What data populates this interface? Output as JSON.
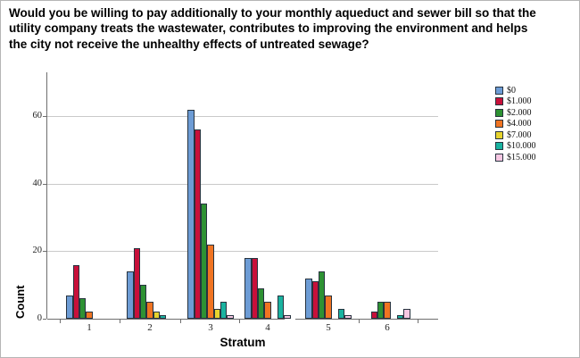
{
  "title": "Would you be willing to pay additionally to your monthly aqueduct and sewer bill so that the utility company treats the wastewater, contributes to improving the environment and helps the city not receive the unhealthy effects of untreated sewage?",
  "chart_data": {
    "type": "bar",
    "title": "Would you be willing to pay additionally to your monthly aqueduct and sewer bill so that the utility company treats the wastewater, contributes to improving the environment and helps the city not receive the unhealthy effects of untreated sewage?",
    "categories": [
      "1",
      "2",
      "3",
      "4",
      "5",
      "6"
    ],
    "series": [
      {
        "name": "$0",
        "color": "#6D9CD5",
        "values": [
          7,
          14,
          62,
          18,
          12,
          0
        ]
      },
      {
        "name": "$1.000",
        "color": "#C8103A",
        "values": [
          16,
          21,
          56,
          18,
          11,
          2
        ]
      },
      {
        "name": "$2.000",
        "color": "#2E9233",
        "values": [
          6,
          10,
          34,
          9,
          14,
          5
        ]
      },
      {
        "name": "$4.000",
        "color": "#F07422",
        "values": [
          2,
          5,
          22,
          5,
          7,
          5
        ]
      },
      {
        "name": "$7.000",
        "color": "#E6D32E",
        "values": [
          0,
          2,
          3,
          0,
          0,
          0
        ]
      },
      {
        "name": "$10.000",
        "color": "#19B3A0",
        "values": [
          0,
          1,
          5,
          7,
          3,
          1
        ]
      },
      {
        "name": "$15.000",
        "color": "#F7C7E2",
        "values": [
          0,
          0,
          1,
          1,
          1,
          3
        ]
      }
    ],
    "xlabel": "Stratum",
    "ylabel": "Count",
    "ylim": [
      0,
      73
    ],
    "yticks": [
      0,
      20,
      40,
      60
    ],
    "grid": "horizontal",
    "legend_position": "right",
    "axis_color": "#6e6e6e",
    "grid_color": "#c9c9c9",
    "bar_border_color": "#27333f"
  }
}
